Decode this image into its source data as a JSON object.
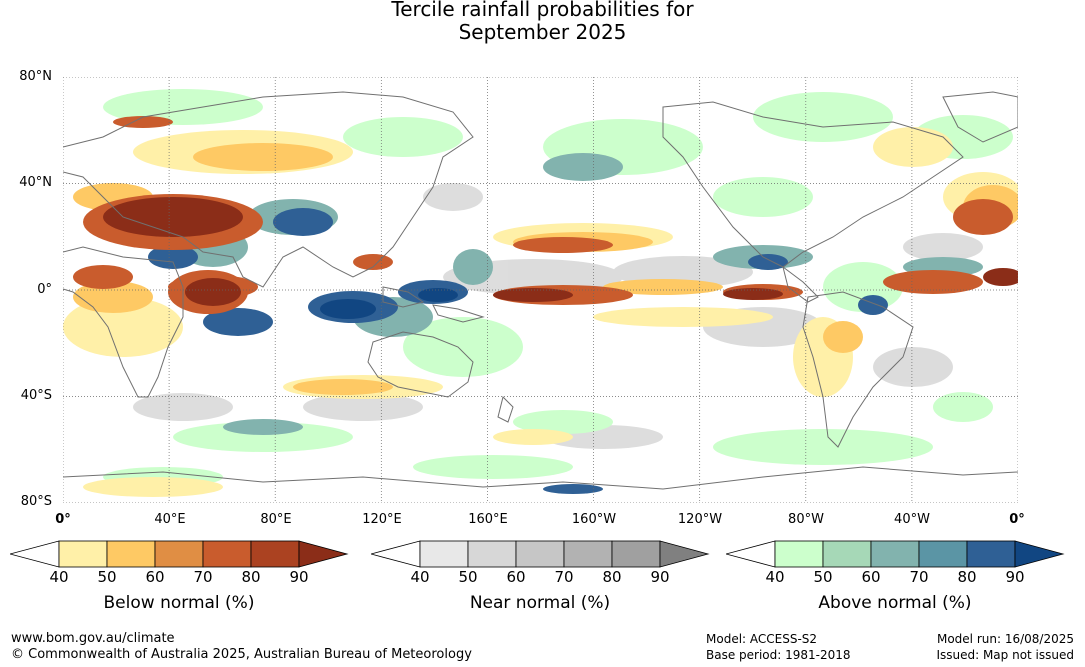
{
  "title_line1": "Tercile rainfall probabilities for",
  "title_line2": "September 2025",
  "latitude_labels": [
    "80°N",
    "40°N",
    "0°",
    "40°S",
    "80°S"
  ],
  "longitude_labels": [
    "0°",
    "40°E",
    "80°E",
    "120°E",
    "160°E",
    "160°W",
    "120°W",
    "80°W",
    "40°W",
    "0°"
  ],
  "legends": [
    {
      "title": "Below normal (%)",
      "ticks": [
        "40",
        "50",
        "60",
        "70",
        "80",
        "90"
      ],
      "colors": [
        "#fff0a8",
        "#fec964",
        "#e08e44",
        "#c95c2d",
        "#ab4221",
        "#8b2d18"
      ]
    },
    {
      "title": "Near normal (%)",
      "ticks": [
        "40",
        "50",
        "60",
        "70",
        "80",
        "90"
      ],
      "colors": [
        "#e8e8e8",
        "#d7d7d7",
        "#c6c6c6",
        "#b2b2b2",
        "#a0a0a0",
        "#808080"
      ]
    },
    {
      "title": "Above normal (%)",
      "ticks": [
        "40",
        "50",
        "60",
        "70",
        "80",
        "90"
      ],
      "colors": [
        "#ccffcc",
        "#a6d8b7",
        "#82b3ae",
        "#5b95a5",
        "#2f6095",
        "#114682"
      ]
    }
  ],
  "footer": {
    "website": "www.bom.gov.au/climate",
    "copyright": "© Commonwealth of Australia 2025, Australian Bureau of Meteorology",
    "model": "Model: ACCESS-S2",
    "base_period": "Base period: 1981-2018",
    "model_run": "Model run: 16/08/2025",
    "issued": "Issued: Map not issued"
  }
}
